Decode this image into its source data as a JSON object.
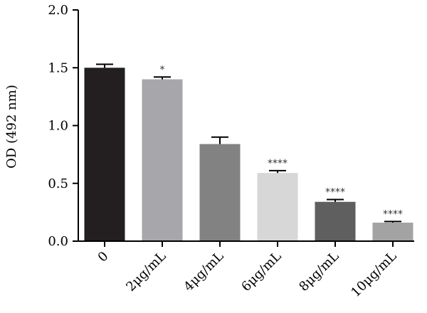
{
  "chart_data": {
    "type": "bar",
    "title": "",
    "xlabel": "",
    "ylabel": "OD (492 nm)",
    "ylim": [
      0,
      2.0
    ],
    "yticks": [
      0.0,
      0.5,
      1.0,
      1.5,
      2.0
    ],
    "ytick_labels": [
      "0.0",
      "0.5",
      "1.0",
      "1.5",
      "2.0"
    ],
    "categories": [
      "0",
      "2μg/mL",
      "4μg/mL",
      "6μg/mL",
      "8μg/mL",
      "10μg/mL"
    ],
    "values": [
      1.5,
      1.4,
      0.84,
      0.59,
      0.34,
      0.16
    ],
    "errors": [
      0.03,
      0.02,
      0.06,
      0.02,
      0.02,
      0.01
    ],
    "significance": [
      "",
      "*",
      "",
      "****",
      "****",
      "****"
    ],
    "colors": [
      "#231f20",
      "#a7a6aa",
      "#828282",
      "#d7d7d7",
      "#5f5f5f",
      "#a3a3a3"
    ],
    "grid": false,
    "legend": "none"
  }
}
